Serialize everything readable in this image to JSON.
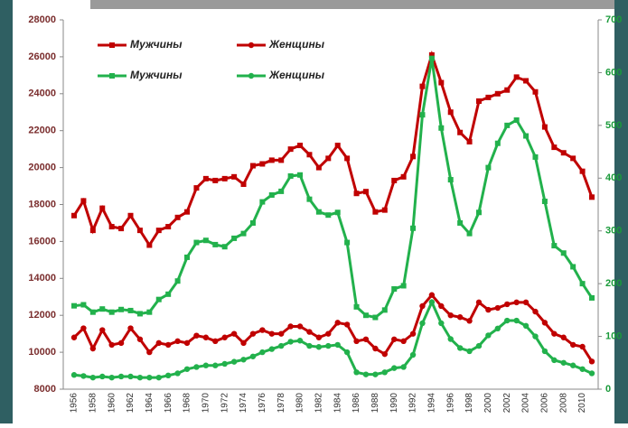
{
  "chart_data": {
    "type": "line",
    "categories": [
      "1956",
      null,
      "1958",
      null,
      "1960",
      null,
      "1962",
      null,
      "1964",
      null,
      "1966",
      null,
      "1968",
      null,
      "1970",
      null,
      "1972",
      null,
      "1974",
      null,
      "1976",
      null,
      "1978",
      null,
      "1980",
      null,
      "1982",
      null,
      "1984",
      null,
      "1986",
      null,
      "1988",
      null,
      "1990",
      null,
      "1992",
      null,
      "1994",
      null,
      "1996",
      null,
      "1998",
      null,
      "2000",
      null,
      "2002",
      null,
      "2004",
      null,
      "2006",
      null,
      "2008",
      null,
      "2010",
      null
    ],
    "ylim": [
      8000,
      28000
    ],
    "yticks": [
      8000,
      10000,
      12000,
      14000,
      16000,
      18000,
      20000,
      22000,
      24000,
      26000,
      28000
    ],
    "y2lim": [
      0,
      700
    ],
    "y2ticks": [
      0,
      100,
      200,
      300,
      400,
      500,
      600,
      700
    ],
    "series": [
      {
        "name": "Мужчины",
        "color": "#c00000",
        "marker": "square",
        "axis": "y",
        "values": [
          17400,
          18200,
          16600,
          17800,
          16800,
          16700,
          17400,
          16600,
          15800,
          16600,
          16800,
          17300,
          17600,
          18900,
          19400,
          19300,
          19400,
          19500,
          19100,
          20100,
          20200,
          20400,
          20400,
          21000,
          21200,
          20700,
          20000,
          20500,
          21200,
          20500,
          18600,
          18700,
          17600,
          17700,
          19300,
          19500,
          20600,
          24400,
          26100,
          24600,
          23000,
          21900,
          21400,
          23600,
          23800,
          24000,
          24200,
          24900,
          24700,
          24100,
          22200,
          21100,
          20800,
          20500,
          19800,
          18400
        ]
      },
      {
        "name": "Женщины",
        "color": "#c00000",
        "marker": "circle",
        "axis": "y",
        "values": [
          10800,
          11300,
          10200,
          11200,
          10400,
          10500,
          11300,
          10700,
          10000,
          10500,
          10400,
          10600,
          10500,
          10900,
          10800,
          10600,
          10800,
          11000,
          10500,
          11000,
          11200,
          11000,
          11000,
          11400,
          11400,
          11100,
          10800,
          11000,
          11600,
          11500,
          10600,
          10700,
          10200,
          9900,
          10700,
          10600,
          11000,
          12500,
          13100,
          12500,
          12000,
          11900,
          11700,
          12700,
          12300,
          12400,
          12600,
          12700,
          12700,
          12200,
          11600,
          11000,
          10800,
          10400,
          10300,
          9500
        ]
      },
      {
        "name": "Мужчины",
        "color": "#22b14c",
        "marker": "square",
        "axis": "y2",
        "values": [
          158,
          160,
          146,
          152,
          146,
          151,
          149,
          143,
          146,
          170,
          180,
          205,
          250,
          278,
          282,
          274,
          270,
          286,
          295,
          315,
          355,
          368,
          375,
          404,
          406,
          360,
          336,
          330,
          335,
          278,
          156,
          140,
          136,
          150,
          190,
          196,
          305,
          520,
          627,
          495,
          397,
          315,
          295,
          335,
          420,
          466,
          500,
          510,
          480,
          440,
          356,
          272,
          258,
          232,
          200,
          173
        ]
      },
      {
        "name": "Женщины",
        "color": "#22b14c",
        "marker": "circle",
        "axis": "y2",
        "values": [
          27,
          25,
          22,
          24,
          22,
          24,
          24,
          22,
          22,
          22,
          26,
          30,
          38,
          42,
          45,
          45,
          48,
          52,
          56,
          62,
          70,
          76,
          82,
          90,
          92,
          82,
          80,
          82,
          84,
          70,
          32,
          28,
          28,
          32,
          40,
          42,
          65,
          125,
          165,
          125,
          95,
          78,
          72,
          82,
          102,
          115,
          130,
          130,
          120,
          100,
          72,
          55,
          50,
          45,
          38,
          30
        ]
      }
    ]
  }
}
